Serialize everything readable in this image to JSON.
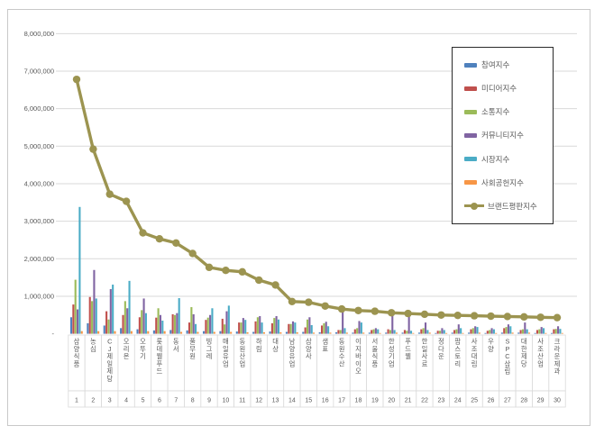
{
  "chart_data": {
    "type": "bar",
    "title": "",
    "xlabel": "",
    "ylabel": "",
    "ylim": [
      0,
      8000000
    ],
    "grid": true,
    "legend_position": "upper-right",
    "y_ticks": [
      {
        "label": "8,000,000",
        "value": 8000000
      },
      {
        "label": "7,000,000",
        "value": 7000000
      },
      {
        "label": "6,000,000",
        "value": 6000000
      },
      {
        "label": "5,000,000",
        "value": 5000000
      },
      {
        "label": "4,000,000",
        "value": 4000000
      },
      {
        "label": "3,000,000",
        "value": 3000000
      },
      {
        "label": "2,000,000",
        "value": 2000000
      },
      {
        "label": "1,000,000",
        "value": 1000000
      },
      {
        "label": "-",
        "value": 0
      }
    ],
    "categories": [
      "삼양식품",
      "농심",
      "CJ제일제당",
      "오리온",
      "오뚜기",
      "롯데웰푸드",
      "동서",
      "풀무원",
      "빙그레",
      "매일유업",
      "동원산업",
      "하림",
      "대상",
      "남양유업",
      "삼양사",
      "샘표",
      "동원수산",
      "이지바이오",
      "서울식품",
      "한성기업",
      "푸드웰",
      "한일사료",
      "정다운",
      "팜스토리",
      "사조대림",
      "우양",
      "SPC삼립",
      "대한제당",
      "사조산업",
      "크라운제과"
    ],
    "ranks": [
      1,
      2,
      3,
      4,
      5,
      6,
      7,
      8,
      9,
      10,
      11,
      12,
      13,
      14,
      15,
      16,
      17,
      18,
      19,
      20,
      21,
      22,
      23,
      24,
      25,
      26,
      27,
      28,
      29,
      30
    ],
    "series": [
      {
        "name": "참여지수",
        "key": "participation-index",
        "type": "bar",
        "color": "#4F81BD",
        "values": [
          440000,
          280000,
          220000,
          150000,
          120000,
          90000,
          100000,
          90000,
          70000,
          70000,
          60000,
          50000,
          60000,
          50000,
          50000,
          40000,
          40000,
          30000,
          30000,
          30000,
          30000,
          30000,
          20000,
          30000,
          30000,
          20000,
          30000,
          30000,
          20000,
          20000
        ]
      },
      {
        "name": "미디어지수",
        "key": "media-index",
        "type": "bar",
        "color": "#C0504D",
        "values": [
          780000,
          980000,
          600000,
          500000,
          440000,
          430000,
          520000,
          300000,
          370000,
          400000,
          300000,
          330000,
          280000,
          260000,
          170000,
          220000,
          100000,
          120000,
          100000,
          120000,
          100000,
          120000,
          80000,
          100000,
          120000,
          80000,
          150000,
          100000,
          100000,
          120000
        ]
      },
      {
        "name": "소통지수",
        "key": "communication-index",
        "type": "bar",
        "color": "#9BBB59",
        "values": [
          1440000,
          870000,
          380000,
          870000,
          630000,
          680000,
          500000,
          710000,
          430000,
          250000,
          300000,
          440000,
          420000,
          260000,
          380000,
          280000,
          100000,
          150000,
          120000,
          100000,
          80000,
          150000,
          80000,
          120000,
          150000,
          100000,
          180000,
          120000,
          120000,
          130000
        ]
      },
      {
        "name": "커뮤니티지수",
        "key": "community-index",
        "type": "bar",
        "color": "#8064A2",
        "values": [
          650000,
          1700000,
          1190000,
          680000,
          940000,
          500000,
          550000,
          520000,
          500000,
          600000,
          420000,
          470000,
          470000,
          330000,
          440000,
          320000,
          700000,
          340000,
          150000,
          500000,
          480000,
          300000,
          150000,
          250000,
          200000,
          150000,
          250000,
          300000,
          180000,
          200000
        ]
      },
      {
        "name": "시장지수",
        "key": "market-index",
        "type": "bar",
        "color": "#4BACC6",
        "values": [
          3380000,
          940000,
          1310000,
          1410000,
          550000,
          350000,
          950000,
          260000,
          680000,
          750000,
          370000,
          300000,
          380000,
          300000,
          230000,
          200000,
          150000,
          300000,
          120000,
          100000,
          80000,
          100000,
          100000,
          150000,
          180000,
          120000,
          200000,
          120000,
          150000,
          130000
        ]
      },
      {
        "name": "사회공헌지수",
        "key": "social-contribution-index",
        "type": "bar",
        "color": "#F79646",
        "values": [
          70000,
          70000,
          70000,
          70000,
          70000,
          70000,
          50000,
          50000,
          50000,
          50000,
          40000,
          40000,
          40000,
          40000,
          30000,
          30000,
          30000,
          30000,
          20000,
          30000,
          20000,
          30000,
          20000,
          20000,
          30000,
          20000,
          30000,
          30000,
          20000,
          20000
        ]
      },
      {
        "name": "브랜드평판지수",
        "key": "brand-reputation-index",
        "type": "line",
        "color": "#9C9450",
        "values": [
          6780000,
          4920000,
          3720000,
          3530000,
          2690000,
          2530000,
          2420000,
          2140000,
          1770000,
          1690000,
          1650000,
          1430000,
          1300000,
          860000,
          840000,
          740000,
          660000,
          620000,
          600000,
          560000,
          540000,
          520000,
          500000,
          490000,
          480000,
          470000,
          460000,
          450000,
          440000,
          430000
        ]
      }
    ]
  },
  "colors": {
    "grid": "#d9d9d9",
    "cell_border": "#d9d9d9",
    "axis_text": "#595959",
    "frame_border": "#c9c9c9",
    "legend_border": "#2a2a2a"
  }
}
